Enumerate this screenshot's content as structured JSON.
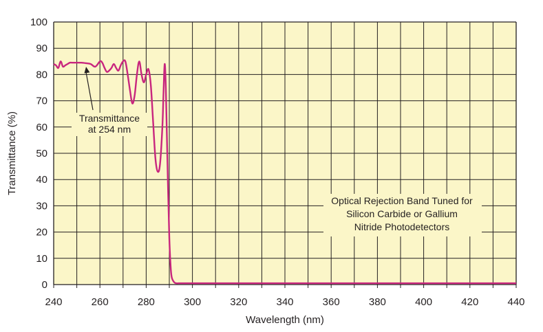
{
  "chart_data": {
    "type": "line",
    "xlabel": "Wavelength (nm)",
    "ylabel": "Transmittance (%)",
    "xlim": [
      240,
      440
    ],
    "ylim": [
      0,
      100
    ],
    "x_ticks": [
      240,
      260,
      280,
      300,
      320,
      340,
      360,
      380,
      400,
      420,
      440
    ],
    "y_ticks": [
      0,
      10,
      20,
      30,
      40,
      50,
      60,
      70,
      80,
      90,
      100
    ],
    "grid": true,
    "colors": {
      "plot_background": "#fbf6c8",
      "grid": "#231f20",
      "series": "#c8267e"
    },
    "series": [
      {
        "x": [
          240,
          241,
          242,
          243,
          244,
          245,
          246,
          247,
          248,
          250,
          252,
          254,
          256,
          258,
          260,
          261,
          262,
          263,
          264,
          265,
          266,
          267,
          268,
          269,
          270,
          271,
          272,
          273,
          274,
          275,
          276,
          277,
          278,
          279,
          280,
          281,
          282,
          283,
          284,
          285,
          286,
          287,
          287.5,
          288,
          288.5,
          289,
          289.5,
          290,
          290.5,
          291,
          292,
          293,
          294,
          295,
          296,
          300,
          320,
          340,
          360,
          380,
          400,
          420,
          440
        ],
        "y": [
          84,
          83.5,
          82.5,
          85,
          83,
          83.5,
          84,
          84.5,
          84.5,
          84.5,
          84.5,
          84.3,
          84,
          83,
          85,
          84.5,
          82.5,
          81,
          81.5,
          82.5,
          84,
          82.5,
          81.5,
          83.5,
          85,
          85,
          80,
          74,
          69,
          72,
          80,
          85,
          80,
          77,
          80,
          82,
          76,
          62,
          48,
          43,
          46,
          60,
          73,
          84,
          75,
          55,
          35,
          18,
          8,
          3,
          1,
          0.5,
          0.5,
          0.5,
          0.5,
          0.5,
          0.5,
          0.5,
          0.5,
          0.5,
          0.5,
          0.5,
          0.5
        ]
      }
    ],
    "annotations": [
      {
        "lines": [
          "Transmittance",
          "at 254 nm"
        ],
        "points_to": [
          254,
          84
        ]
      },
      {
        "lines": [
          "Optical Rejection Band Tuned for",
          "Silicon Carbide or Gallium",
          "Nitride Photodetectors"
        ]
      }
    ]
  }
}
